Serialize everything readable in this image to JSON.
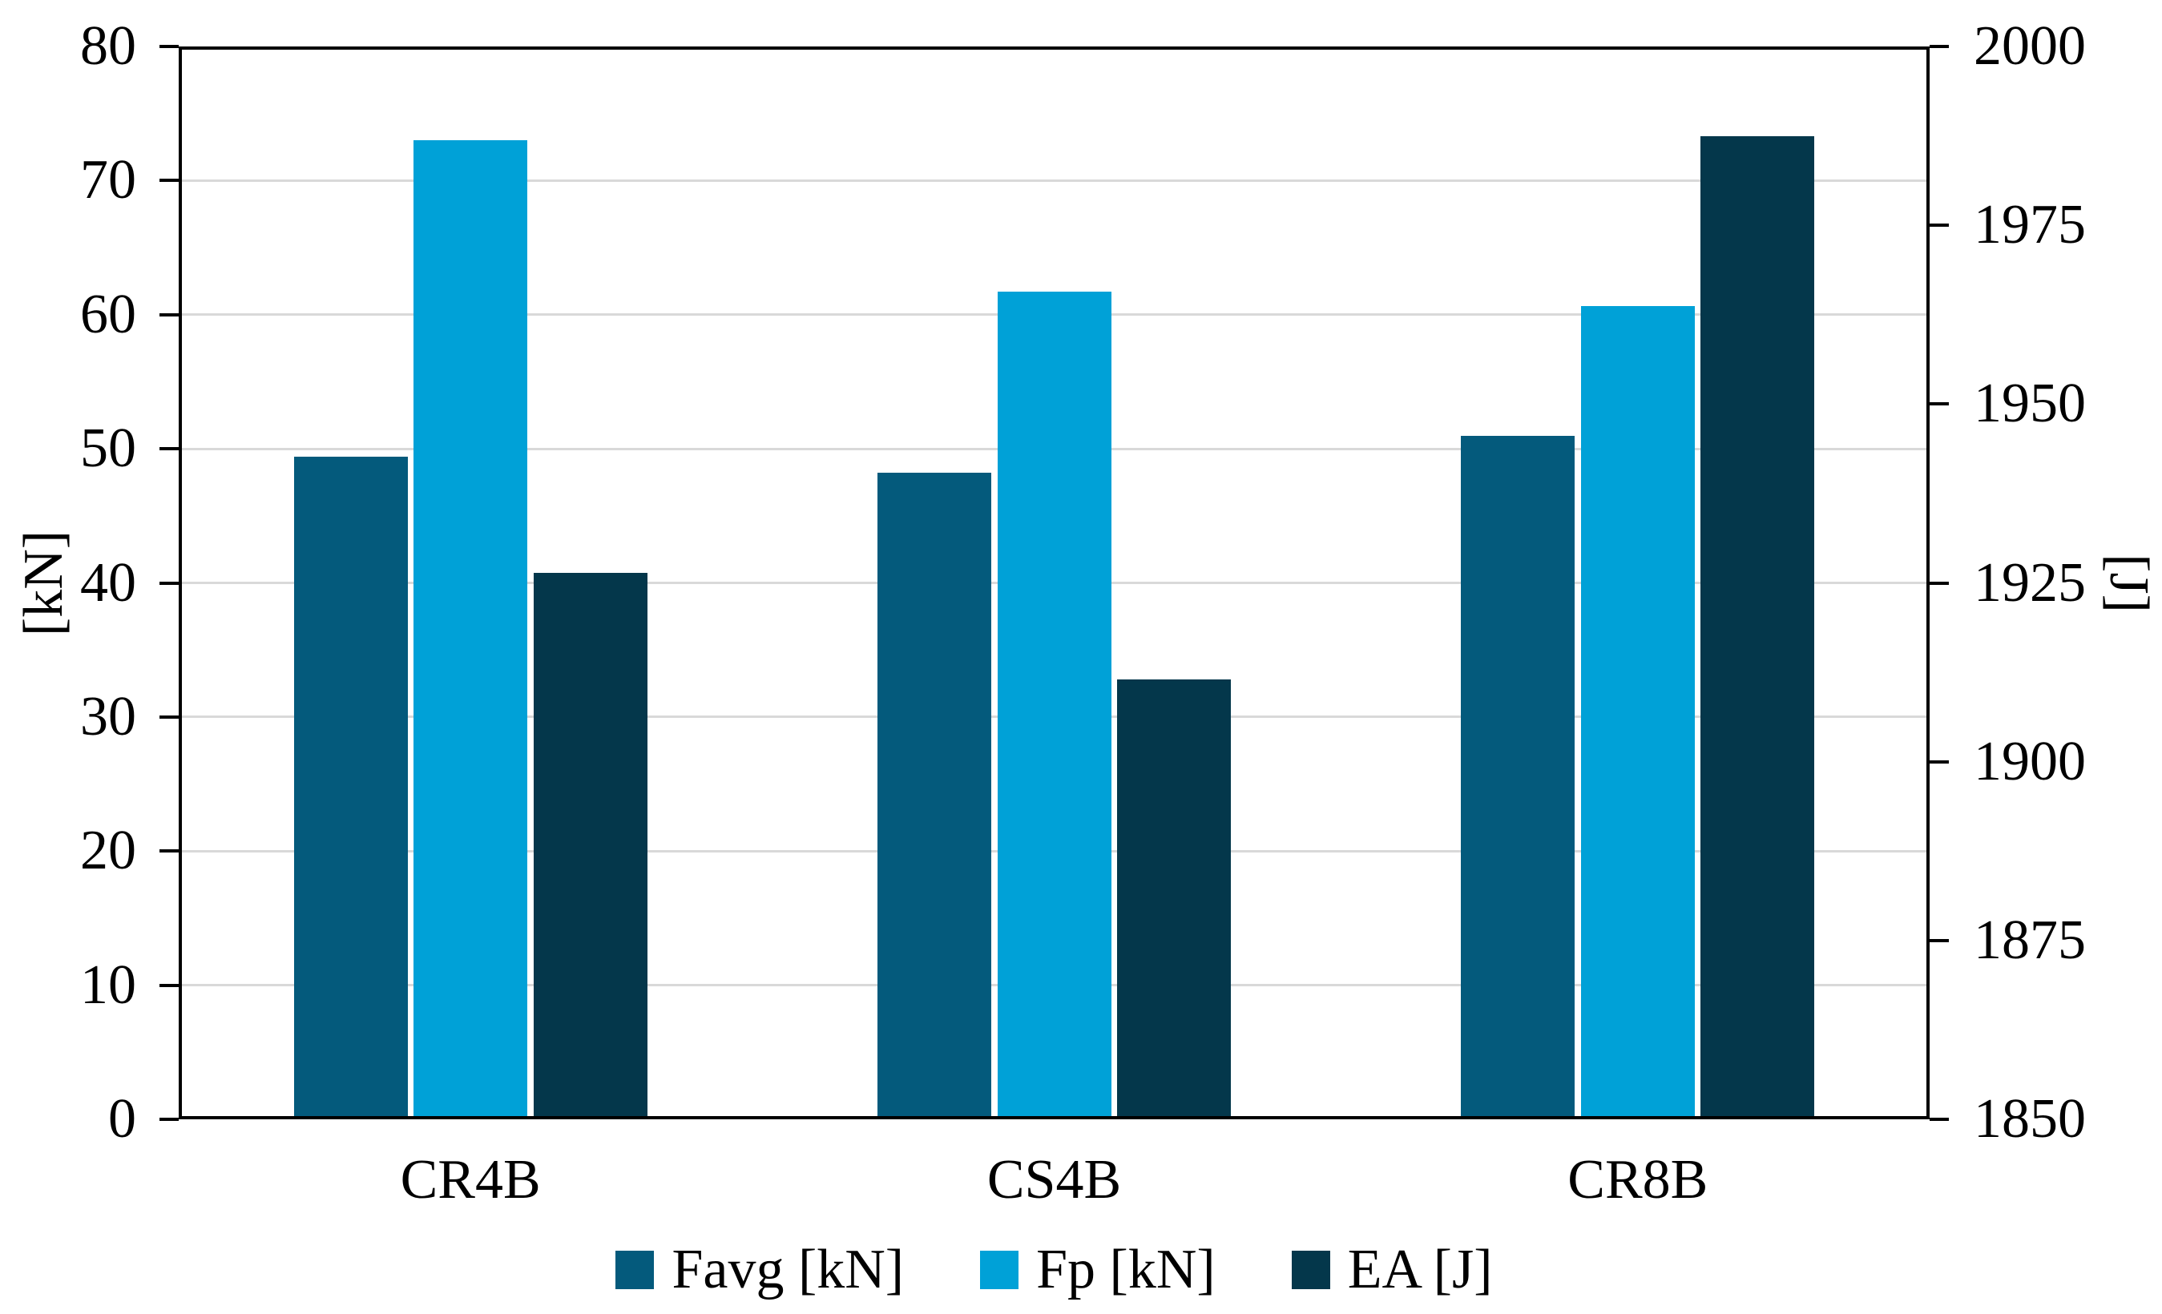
{
  "chart_data": {
    "type": "bar",
    "title": "",
    "categories": [
      "CR4B",
      "CS4B",
      "CR8B"
    ],
    "series": [
      {
        "name": "Favg [kN]",
        "axis": "left",
        "color": "#045A7C",
        "values": [
          49.2,
          48.0,
          50.7
        ]
      },
      {
        "name": "Fp [kN]",
        "axis": "left",
        "color": "#00A1D7",
        "values": [
          72.8,
          61.5,
          60.4
        ]
      },
      {
        "name": "EA [J]",
        "axis": "right",
        "color": "#04374B",
        "values": [
          1926,
          1911,
          1987
        ]
      }
    ],
    "left_axis": {
      "label": "[kN]",
      "min": 0,
      "max": 80,
      "step": 10,
      "tick_labels": [
        "80",
        "70",
        "60",
        "50",
        "40",
        "30",
        "20",
        "10",
        "0"
      ]
    },
    "right_axis": {
      "label": "[J]",
      "min": 1850,
      "max": 2000,
      "step": 25,
      "tick_labels": [
        "2000",
        "1975",
        "1950",
        "1925",
        "1900",
        "1875",
        "1850"
      ]
    },
    "grid": "horizontal-left-axis-only",
    "legend_position": "bottom",
    "legend_entries": [
      "Favg [kN]",
      "Fp [kN]",
      "EA [J]"
    ]
  },
  "colors": {
    "axis_line": "#000000",
    "gridline": "#d9d9d9",
    "background": "#ffffff",
    "text": "#000000"
  }
}
